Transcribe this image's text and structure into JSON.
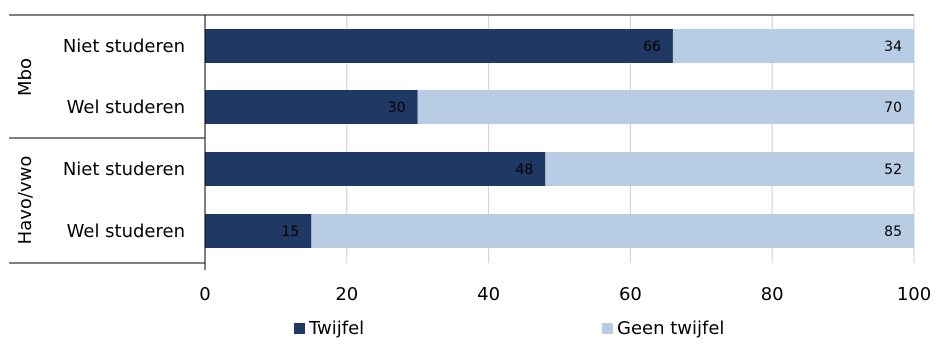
{
  "chart_data": {
    "type": "bar",
    "orientation": "horizontal",
    "stacked": true,
    "groups": [
      {
        "label": "Mbo",
        "rows": [
          "Niet studeren",
          "Wel studeren"
        ]
      },
      {
        "label": "Havo/vwo",
        "rows": [
          "Niet studeren",
          "Wel studeren"
        ]
      }
    ],
    "categories": [
      "Niet studeren",
      "Wel studeren",
      "Niet studeren",
      "Wel studeren"
    ],
    "series": [
      {
        "name": "Twijfel",
        "color": "#1f3864",
        "values": [
          66,
          30,
          48,
          15
        ]
      },
      {
        "name": "Geen twijfel",
        "color": "#b8cce4",
        "values": [
          34,
          70,
          52,
          85
        ]
      }
    ],
    "xlim": [
      0,
      100
    ],
    "xticks": [
      "0",
      "20",
      "40",
      "60",
      "80",
      "100"
    ],
    "grid": true,
    "legend_position": "bottom"
  }
}
